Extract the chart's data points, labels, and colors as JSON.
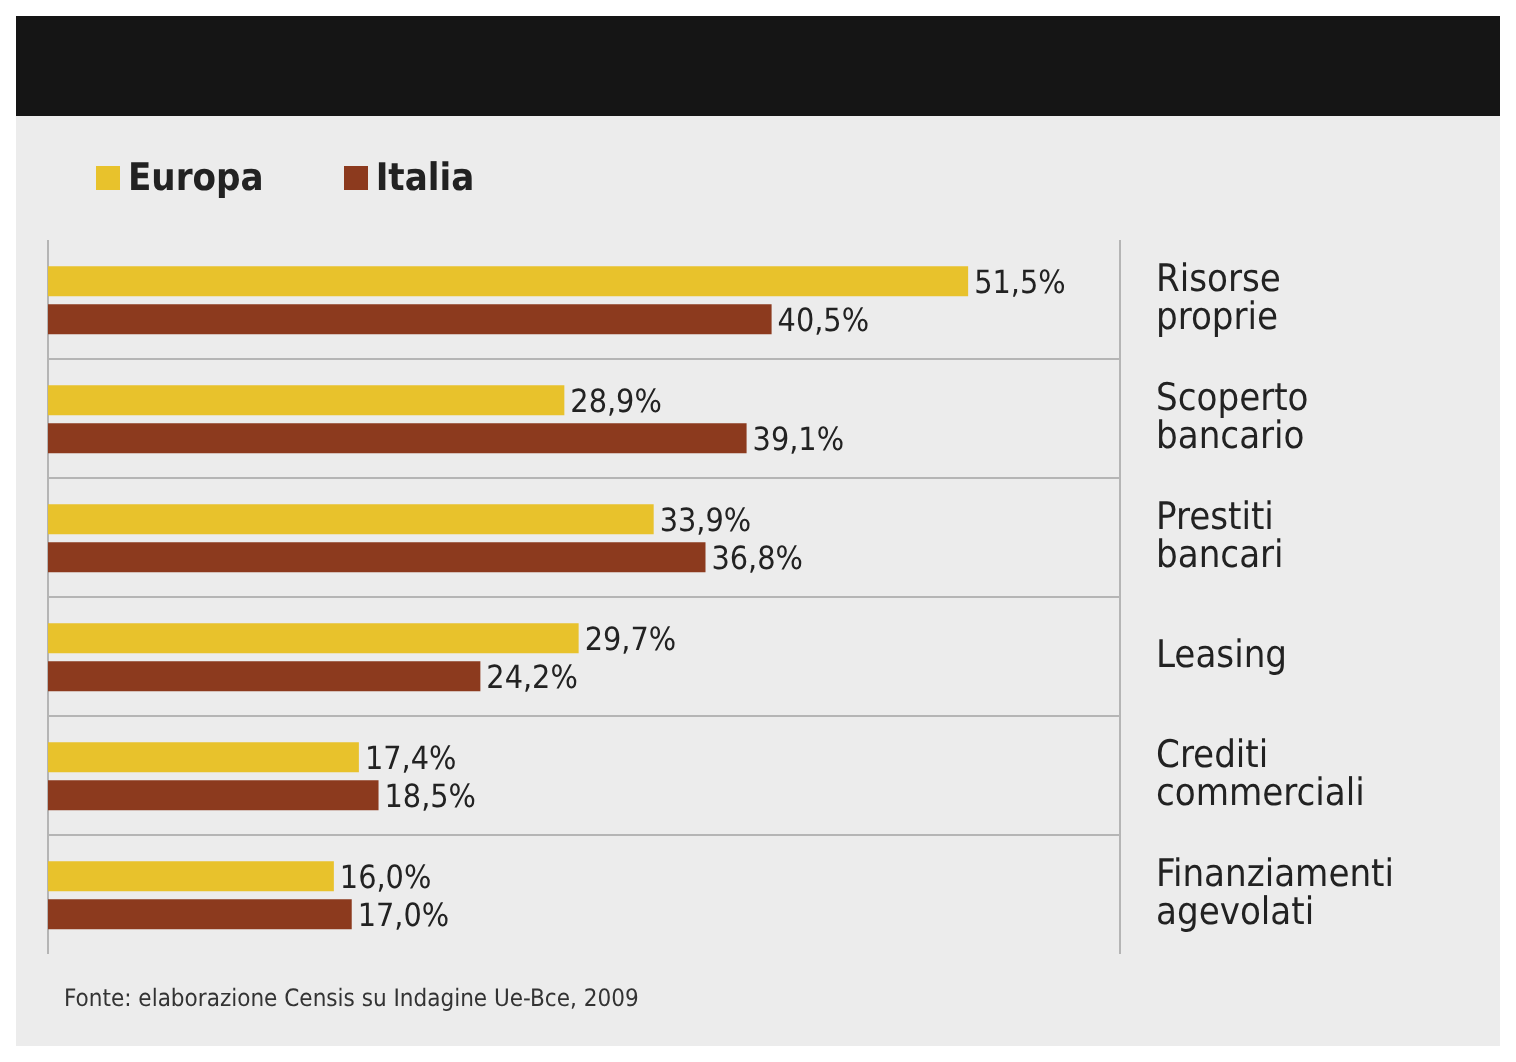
{
  "chart_data": {
    "type": "bar",
    "orientation": "horizontal",
    "categories": [
      "Risorse proprie",
      "Scoperto bancario",
      "Prestiti bancari",
      "Leasing",
      "Crediti commerciali",
      "Finanziamenti agevolati"
    ],
    "series": [
      {
        "name": "Europa",
        "color": "#e8c22c",
        "values": [
          51.5,
          28.9,
          33.9,
          29.7,
          17.4,
          16.0
        ],
        "value_labels": [
          "51,5%",
          "28,9%",
          "33,9%",
          "29,7%",
          "17,4%",
          "16,0%"
        ]
      },
      {
        "name": "Italia",
        "color": "#8c3a1e",
        "values": [
          40.5,
          39.1,
          36.8,
          24.2,
          18.5,
          17.0
        ],
        "value_labels": [
          "40,5%",
          "39,1%",
          "36,8%",
          "24,2%",
          "18,5%",
          "17,0%"
        ]
      }
    ],
    "xlim": [
      0,
      60
    ],
    "tick_labels": "y",
    "grid": true,
    "legend": "top left",
    "annotations": [
      "Fonte: elaborazione Censis su Indagine Ue-Bce, 2009"
    ]
  }
}
